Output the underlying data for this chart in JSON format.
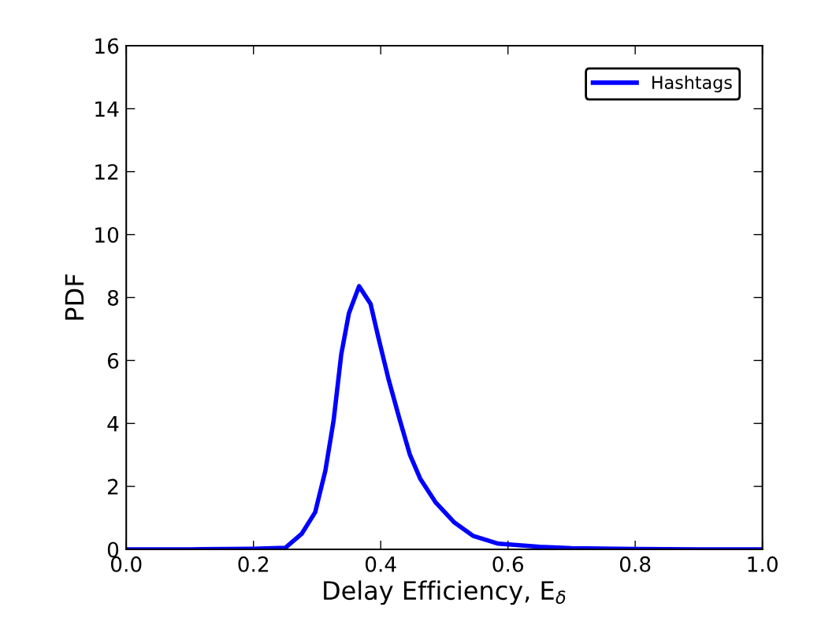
{
  "chart_data": {
    "type": "line",
    "xlabel": "Delay Efficiency, E$_{δ}$",
    "ylabel": "PDF",
    "xlim": [
      0,
      1
    ],
    "ylim": [
      0,
      16
    ],
    "xticks": [
      {
        "value": 0,
        "label": "0.0"
      },
      {
        "value": 0.2,
        "label": "0.2"
      },
      {
        "value": 0.4,
        "label": "0.4"
      },
      {
        "value": 0.6,
        "label": "0.6"
      },
      {
        "value": 0.8,
        "label": "0.8"
      },
      {
        "value": 1,
        "label": "1.0"
      }
    ],
    "yticks": [
      0,
      2,
      4,
      6,
      8,
      10,
      12,
      14,
      16
    ],
    "grid": false,
    "legend": "top right",
    "marker": "none",
    "line_style": "solid",
    "series": [
      {
        "name": "Hashtags",
        "color": "#0000ff",
        "x": [
          0,
          0.1,
          0.2,
          0.25,
          0.276,
          0.297,
          0.313,
          0.326,
          0.338,
          0.35,
          0.366,
          0.384,
          0.396,
          0.412,
          0.429,
          0.446,
          0.462,
          0.486,
          0.516,
          0.545,
          0.585,
          0.65,
          0.7,
          0.8,
          0.9,
          1.0
        ],
        "values": [
          0,
          0,
          0.02,
          0.05,
          0.5,
          1.18,
          2.5,
          4.1,
          6.2,
          7.5,
          8.36,
          7.8,
          6.76,
          5.43,
          4.18,
          3.0,
          2.25,
          1.5,
          0.85,
          0.43,
          0.18,
          0.08,
          0.04,
          0.01,
          0,
          0
        ]
      }
    ]
  }
}
